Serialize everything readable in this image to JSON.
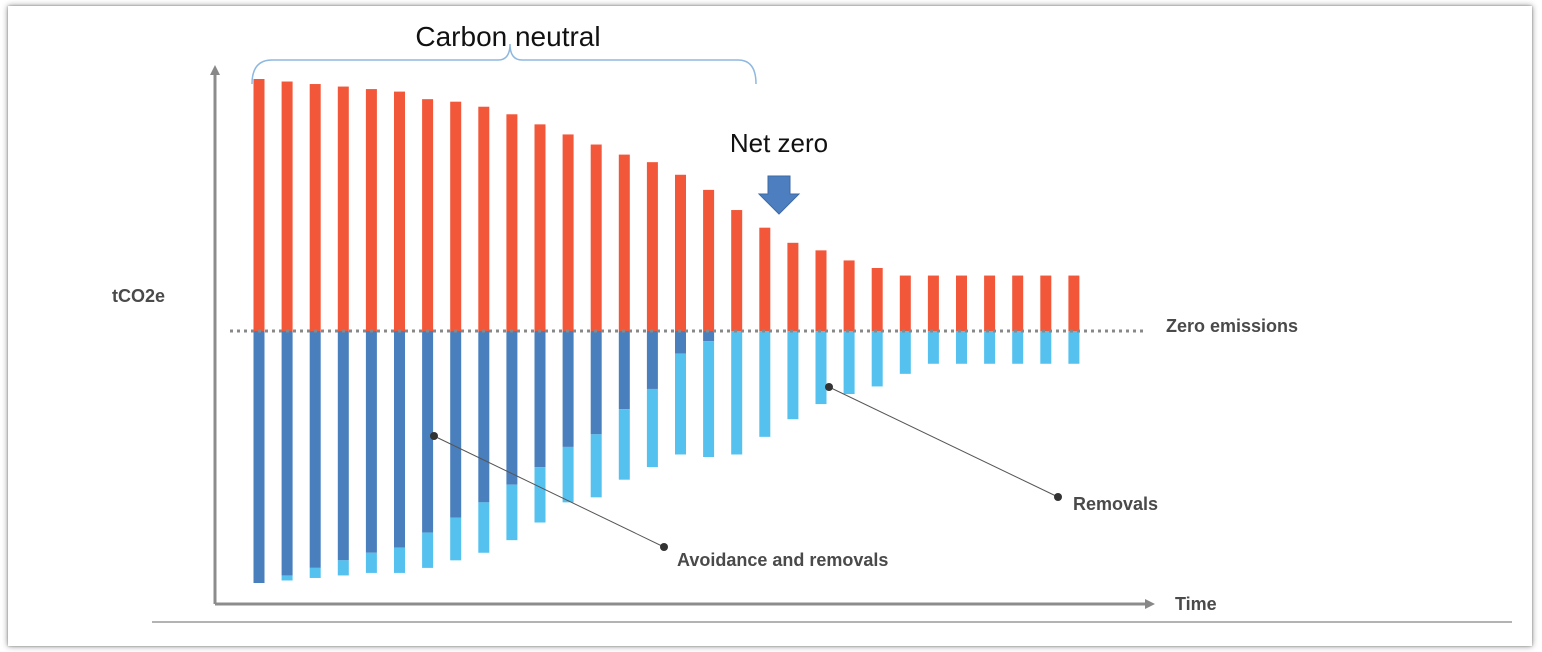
{
  "chart_data": {
    "type": "bar",
    "x_label": "Time",
    "y_label": "tCO2e",
    "baseline_label": "Zero emissions",
    "colors": {
      "emissions": "#f2573a",
      "avoidance": "#4a7fbd",
      "removals": "#55c1ef",
      "baseline": "#888888",
      "arrow": "#4d7fc0"
    },
    "series": [
      {
        "name": "Emissions",
        "values": [
          100,
          99,
          98,
          97,
          96,
          95,
          92,
          91,
          89,
          86,
          82,
          78,
          74,
          70,
          67,
          62,
          56,
          48,
          41,
          35,
          32,
          28,
          25,
          22,
          22,
          22,
          22,
          22,
          22,
          22
        ]
      },
      {
        "name": "Avoidance",
        "values": [
          -100,
          -97,
          -94,
          -91,
          -88,
          -86,
          -80,
          -74,
          -68,
          -61,
          -54,
          -46,
          -41,
          -31,
          -23,
          -9,
          -4,
          0,
          0,
          0,
          0,
          0,
          0,
          0,
          0,
          0,
          0,
          0,
          0,
          0
        ]
      },
      {
        "name": "Removals",
        "values": [
          0,
          -2,
          -4,
          -6,
          -8,
          -10,
          -14,
          -17,
          -20,
          -22,
          -22,
          -22,
          -25,
          -28,
          -31,
          -40,
          -46,
          -49,
          -42,
          -35,
          -29,
          -25,
          -22,
          -17,
          -13,
          -13,
          -13,
          -13,
          -13,
          -13
        ]
      }
    ],
    "annotations": {
      "carbon_neutral": "Carbon neutral",
      "net_zero": "Net zero",
      "avoidance_and_removals": "Avoidance and removals",
      "removals": "Removals"
    }
  }
}
